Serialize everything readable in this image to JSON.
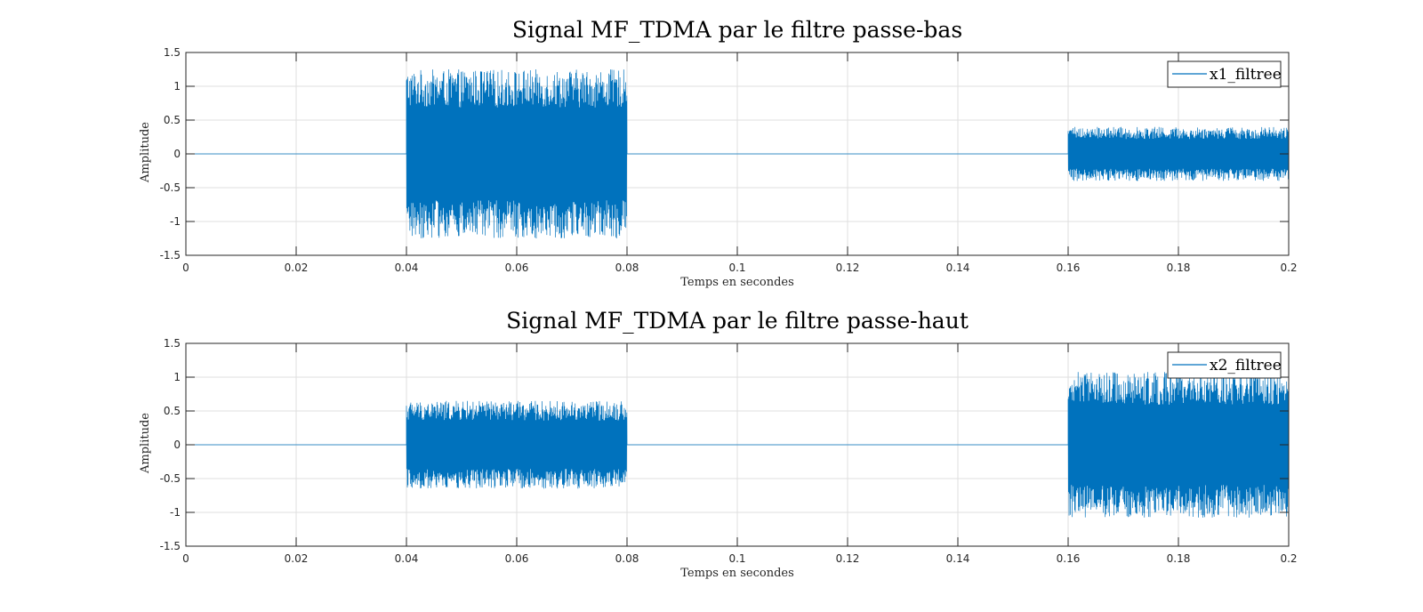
{
  "chart_data": [
    {
      "type": "line",
      "title": "Signal MF_TDMA par le filtre passe-bas",
      "xlabel": "Temps en secondes",
      "ylabel": "Amplitude",
      "xlim": [
        0,
        0.2
      ],
      "ylim": [
        -1.5,
        1.5
      ],
      "x_ticks": [
        0,
        0.02,
        0.04,
        0.06,
        0.08,
        0.1,
        0.12,
        0.14,
        0.16,
        0.18,
        0.2
      ],
      "x_tick_labels": [
        "0",
        "0.02",
        "0.04",
        "0.06",
        "0.08",
        "0.1",
        "0.12",
        "0.14",
        "0.16",
        "0.18",
        "0.2"
      ],
      "y_ticks": [
        -1.5,
        -1,
        -0.5,
        0,
        0.5,
        1,
        1.5
      ],
      "y_tick_labels": [
        "-1.5",
        "-1",
        "-0.5",
        "0",
        "0.5",
        "1",
        "1.5"
      ],
      "grid": true,
      "legend_position": "top-right",
      "series": [
        {
          "name": "x1_filtree",
          "color": "#0072BD",
          "segments": [
            {
              "x_start": 0,
              "x_end": 0.04,
              "amplitude": 0
            },
            {
              "x_start": 0.04,
              "x_end": 0.08,
              "amplitude": 1.25
            },
            {
              "x_start": 0.08,
              "x_end": 0.16,
              "amplitude": 0
            },
            {
              "x_start": 0.16,
              "x_end": 0.2,
              "amplitude": 0.4
            }
          ]
        }
      ]
    },
    {
      "type": "line",
      "title": "Signal MF_TDMA par le filtre passe-haut",
      "xlabel": "Temps en secondes",
      "ylabel": "Amplitude",
      "xlim": [
        0,
        0.2
      ],
      "ylim": [
        -1.5,
        1.5
      ],
      "x_ticks": [
        0,
        0.02,
        0.04,
        0.06,
        0.08,
        0.1,
        0.12,
        0.14,
        0.16,
        0.18,
        0.2
      ],
      "x_tick_labels": [
        "0",
        "0.02",
        "0.04",
        "0.06",
        "0.08",
        "0.1",
        "0.12",
        "0.14",
        "0.16",
        "0.18",
        "0.2"
      ],
      "y_ticks": [
        -1.5,
        -1,
        -0.5,
        0,
        0.5,
        1,
        1.5
      ],
      "y_tick_labels": [
        "-1.5",
        "-1",
        "-0.5",
        "0",
        "0.5",
        "1",
        "1.5"
      ],
      "grid": true,
      "legend_position": "top-right",
      "series": [
        {
          "name": "x2_filtree",
          "color": "#0072BD",
          "segments": [
            {
              "x_start": 0,
              "x_end": 0.04,
              "amplitude": 0
            },
            {
              "x_start": 0.04,
              "x_end": 0.08,
              "amplitude": 0.65
            },
            {
              "x_start": 0.08,
              "x_end": 0.16,
              "amplitude": 0
            },
            {
              "x_start": 0.16,
              "x_end": 0.2,
              "amplitude": 1.08
            }
          ]
        }
      ]
    }
  ]
}
